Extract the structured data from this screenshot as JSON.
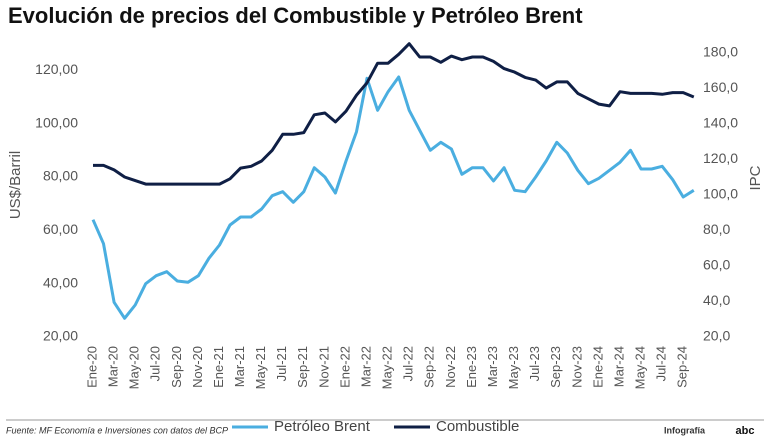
{
  "chart_data": {
    "type": "line",
    "title": "Evolución de precios del Combustible y Petróleo Brent",
    "y_label": "US$/Barril",
    "y2_label": "IPC",
    "categories": [
      "Ene-20",
      null,
      "Mar-20",
      null,
      "May-20",
      null,
      "Jul-20",
      null,
      "Sep-20",
      null,
      "Nov-20",
      null,
      "Ene-21",
      null,
      "Mar-21",
      null,
      "May-21",
      null,
      "Jul-21",
      null,
      "Sep-21",
      null,
      "Nov-21",
      null,
      "Ene-22",
      null,
      "Mar-22",
      null,
      "May-22",
      null,
      "Jul-22",
      null,
      "Sep-22",
      null,
      "Nov-22",
      null,
      "Ene-23",
      null,
      "Mar-23",
      null,
      "May-23",
      null,
      "Jul-23",
      null,
      "Sep-23",
      null,
      "Nov-23",
      null,
      "Ene-24",
      null,
      "Mar-24",
      null,
      "May-24",
      null,
      "Jul-24",
      null,
      "Sep-24",
      null
    ],
    "series": [
      {
        "name": "Petróleo Brent",
        "color": "#4aaee0",
        "axis": "y",
        "values": [
          64,
          55,
          33,
          27,
          32,
          40,
          43,
          44.5,
          41,
          40.5,
          43,
          49.5,
          54.5,
          62,
          65,
          65,
          68,
          73,
          74.5,
          70.5,
          74.5,
          83.5,
          80,
          74,
          86,
          97,
          117,
          105,
          112,
          117.5,
          105,
          97.5,
          90,
          93,
          90.5,
          81,
          83.5,
          83.5,
          78.5,
          83.5,
          75,
          74.5,
          80,
          86,
          93,
          89,
          82.5,
          77.5,
          79.5,
          82.5,
          85.5,
          90,
          83,
          83,
          84,
          79,
          72.5,
          75
        ]
      },
      {
        "name": "Combustible",
        "color": "#0f1f45",
        "axis": "y2",
        "values": [
          116.5,
          116.5,
          114,
          110,
          108,
          106,
          106,
          106,
          106,
          106,
          106,
          106,
          106,
          109,
          115,
          116,
          119,
          125,
          134,
          134,
          135,
          145,
          146,
          141,
          147,
          156,
          163,
          174,
          174,
          179,
          185,
          177.5,
          177.5,
          174.5,
          178,
          176,
          177.5,
          177.5,
          175,
          171,
          169,
          166,
          164.5,
          160,
          163.5,
          163.5,
          157,
          154,
          151,
          150,
          158,
          157,
          157,
          157,
          156.5,
          157.5,
          157.5,
          155
        ]
      }
    ],
    "ylim": [
      20,
      131
    ],
    "yticks": [
      {
        "value": 20,
        "label": "20,00"
      },
      {
        "value": 40,
        "label": "40,00"
      },
      {
        "value": 60,
        "label": "60,00"
      },
      {
        "value": 80,
        "label": "80,00"
      },
      {
        "value": 100,
        "label": "100,00"
      },
      {
        "value": 120,
        "label": "120,00"
      }
    ],
    "y2lim": [
      20,
      186.5
    ],
    "y2ticks": [
      {
        "value": 20,
        "label": "20,0"
      },
      {
        "value": 40,
        "label": "40,0"
      },
      {
        "value": 60,
        "label": "60,0"
      },
      {
        "value": 80,
        "label": "80,0"
      },
      {
        "value": 100,
        "label": "100,0"
      },
      {
        "value": 120,
        "label": "120,0"
      },
      {
        "value": 140,
        "label": "140,0"
      },
      {
        "value": 160,
        "label": "160,0"
      },
      {
        "value": 180,
        "label": "180,0"
      }
    ],
    "legend": "bottom",
    "source": "Fuente: MF Economía e Inversiones con datos del BCP",
    "credit": "Infografía",
    "logo": "abc"
  }
}
